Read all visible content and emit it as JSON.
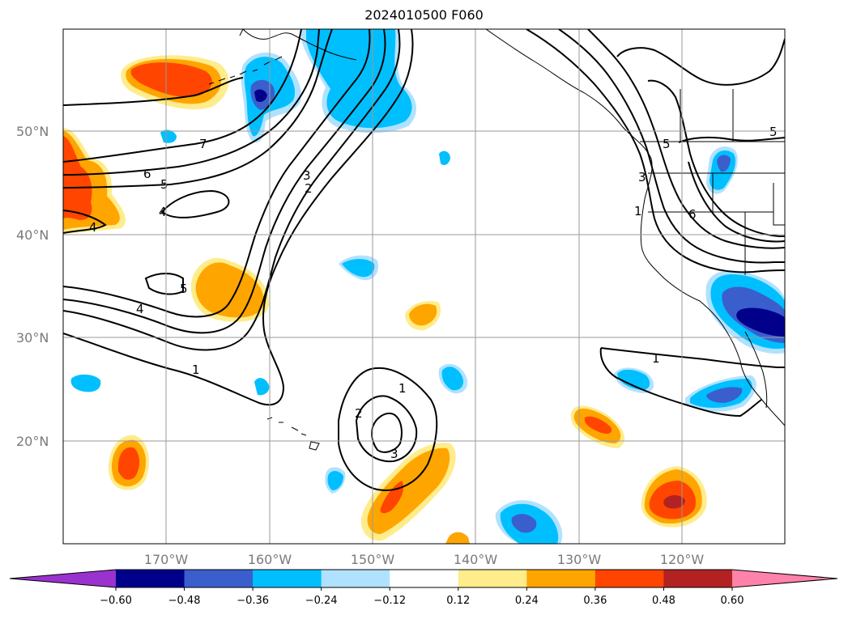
{
  "title": "2024010500 F060",
  "map": {
    "projection": "PlateCarree",
    "lat_labels": [
      "50°N",
      "40°N",
      "30°N",
      "20°N"
    ],
    "lon_labels": [
      "170°W",
      "160°W",
      "150°W",
      "140°W",
      "130°W",
      "120°W"
    ],
    "gridlines": true
  },
  "colorbar": {
    "orientation": "horizontal",
    "extend": "both",
    "tick_labels": [
      "−0.60",
      "−0.48",
      "−0.36",
      "−0.24",
      "−0.12",
      "0.12",
      "0.24",
      "0.36",
      "0.48",
      "0.60"
    ],
    "colors": [
      "#9a32cd",
      "#00008b",
      "#3a5fcd",
      "#00bfff",
      "#b0e2ff",
      "#ffffff",
      "#ffec8b",
      "#ffa500",
      "#ff4500",
      "#b22222",
      "#ff82ab"
    ]
  },
  "contour_labels": [
    "7",
    "6",
    "5",
    "4",
    "3",
    "2",
    "1",
    "5",
    "4",
    "1",
    "2",
    "1",
    "3",
    "5",
    "3",
    "6",
    "1",
    "4",
    "5"
  ]
}
